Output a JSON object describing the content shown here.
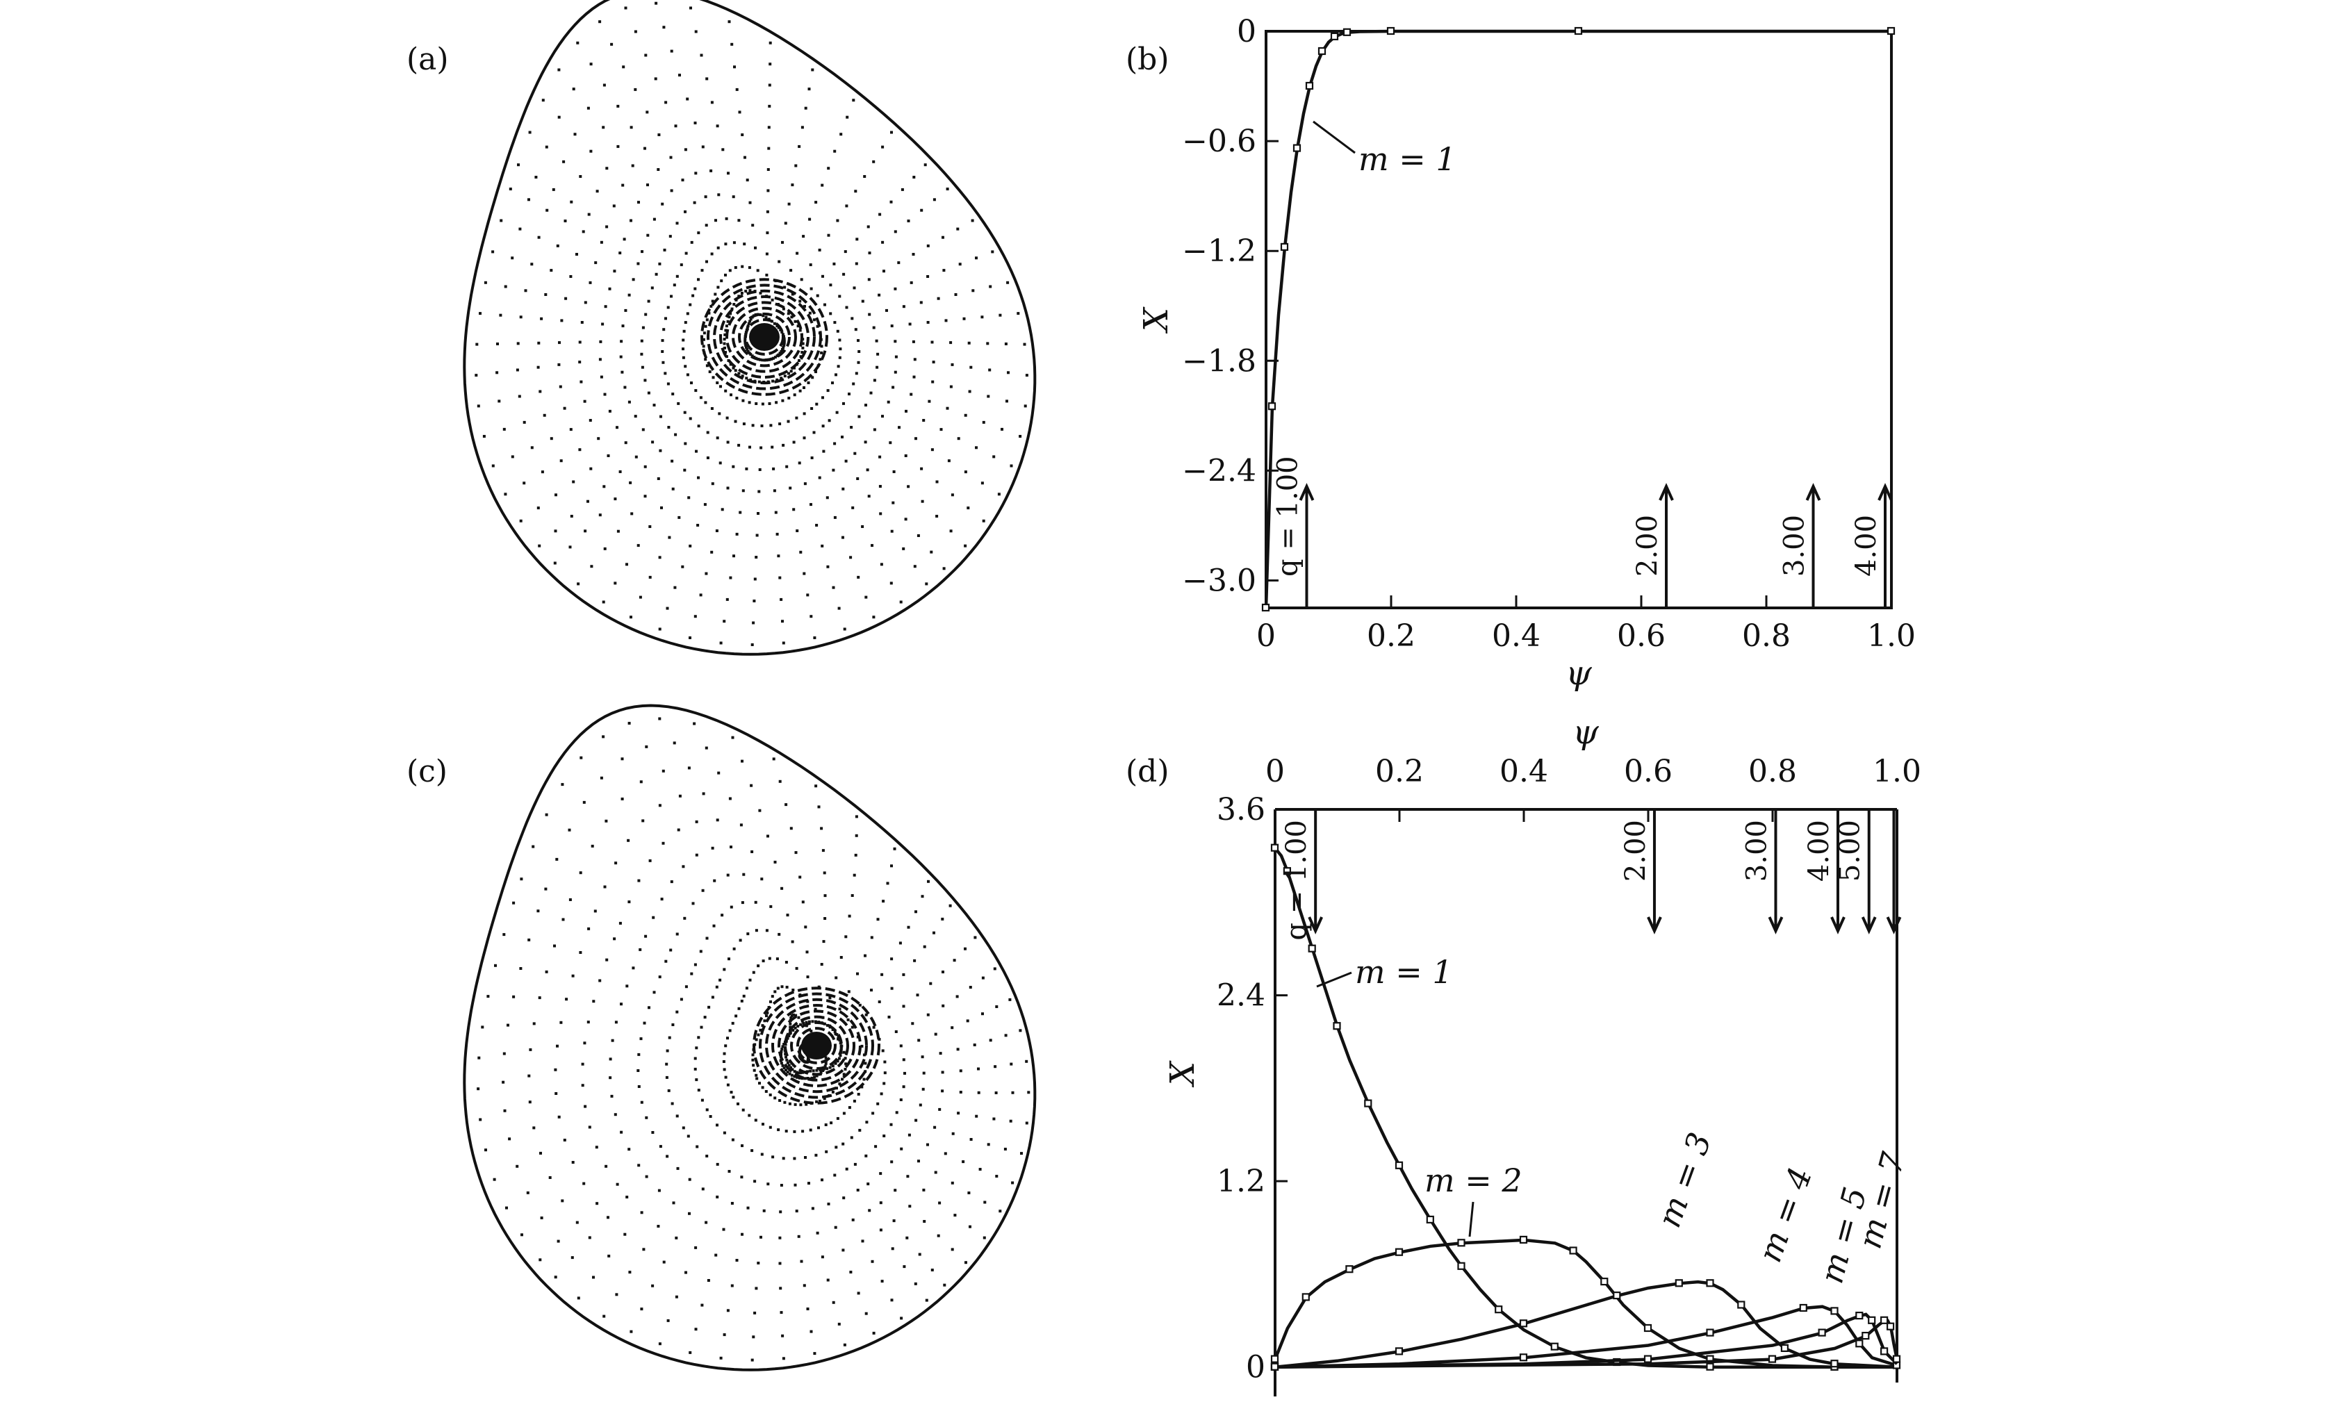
{
  "panels": {
    "a": {
      "label": "(a)"
    },
    "b": {
      "label": "(b)"
    },
    "c": {
      "label": "(c)"
    },
    "d": {
      "label": "(d)"
    }
  },
  "chart_data": [
    {
      "panel": "(b)",
      "type": "line",
      "xlabel": "ψ",
      "ylabel": "X",
      "xlim": [
        0,
        1.0
      ],
      "ylim": [
        -3.15,
        0
      ],
      "xticks": [
        0,
        0.2,
        0.4,
        0.6,
        0.8,
        1.0
      ],
      "xtick_labels": [
        "0",
        "0.2",
        "0.4",
        "0.6",
        "0.8",
        "1.0"
      ],
      "yticks": [
        0,
        -0.6,
        -1.2,
        -1.8,
        -2.4,
        -3.0
      ],
      "ytick_labels": [
        "0",
        "−0.6",
        "−1.2",
        "−1.8",
        "−2.4",
        "−3.0"
      ],
      "series": [
        {
          "name": "m = 1",
          "x": [
            0.0,
            0.005,
            0.01,
            0.02,
            0.03,
            0.04,
            0.05,
            0.06,
            0.07,
            0.08,
            0.09,
            0.1,
            0.11,
            0.12,
            0.13,
            0.15,
            0.2,
            0.3,
            0.5,
            0.7,
            1.0
          ],
          "y": [
            -3.15,
            -2.6,
            -2.05,
            -1.55,
            -1.18,
            -0.88,
            -0.64,
            -0.45,
            -0.3,
            -0.19,
            -0.11,
            -0.06,
            -0.03,
            -0.015,
            -0.007,
            -0.002,
            0,
            0,
            0,
            0,
            0
          ]
        }
      ],
      "annotations": [
        {
          "text": "q = 1.00",
          "x": 0.065
        },
        {
          "text": "2.00",
          "x": 0.64
        },
        {
          "text": "3.00",
          "x": 0.875
        },
        {
          "text": "4.00",
          "x": 0.99
        }
      ]
    },
    {
      "panel": "(d)",
      "type": "line",
      "xlabel": "ψ",
      "ylabel": "X",
      "xaxis_position": "top",
      "xlim": [
        0,
        1.0
      ],
      "ylim": [
        -0.1,
        3.6
      ],
      "xticks": [
        0,
        0.2,
        0.4,
        0.6,
        0.8,
        1.0
      ],
      "xtick_labels": [
        "0",
        "0.2",
        "0.4",
        "0.6",
        "0.8",
        "1.0"
      ],
      "yticks": [
        0,
        1.2,
        2.4,
        3.6
      ],
      "ytick_labels": [
        "0",
        "1.2",
        "2.4",
        "3.6"
      ],
      "series": [
        {
          "name": "m = 1",
          "x": [
            0.0,
            0.01,
            0.02,
            0.04,
            0.06,
            0.08,
            0.1,
            0.12,
            0.15,
            0.18,
            0.2,
            0.22,
            0.25,
            0.28,
            0.3,
            0.33,
            0.36,
            0.4,
            0.45,
            0.5,
            0.55,
            0.6,
            0.7,
            0.8,
            0.9,
            1.0
          ],
          "y": [
            3.35,
            3.3,
            3.2,
            2.95,
            2.7,
            2.45,
            2.2,
            1.98,
            1.7,
            1.45,
            1.3,
            1.15,
            0.95,
            0.76,
            0.65,
            0.5,
            0.37,
            0.24,
            0.13,
            0.06,
            0.03,
            0.01,
            0,
            0,
            0,
            0
          ]
        },
        {
          "name": "m = 2",
          "x": [
            0.0,
            0.02,
            0.05,
            0.08,
            0.12,
            0.16,
            0.2,
            0.25,
            0.3,
            0.35,
            0.4,
            0.45,
            0.48,
            0.5,
            0.53,
            0.56,
            0.6,
            0.65,
            0.7,
            0.8,
            0.9,
            1.0
          ],
          "y": [
            0.05,
            0.25,
            0.45,
            0.55,
            0.63,
            0.7,
            0.74,
            0.78,
            0.8,
            0.81,
            0.82,
            0.8,
            0.75,
            0.68,
            0.55,
            0.4,
            0.25,
            0.12,
            0.05,
            0.01,
            0,
            0
          ]
        },
        {
          "name": "m = 3",
          "x": [
            0.0,
            0.1,
            0.2,
            0.3,
            0.4,
            0.5,
            0.55,
            0.6,
            0.65,
            0.68,
            0.7,
            0.72,
            0.75,
            0.78,
            0.82,
            0.86,
            0.9,
            1.0
          ],
          "y": [
            0.0,
            0.04,
            0.1,
            0.18,
            0.28,
            0.4,
            0.46,
            0.51,
            0.54,
            0.55,
            0.54,
            0.5,
            0.4,
            0.25,
            0.12,
            0.05,
            0.02,
            0
          ]
        },
        {
          "name": "m = 4",
          "x": [
            0.0,
            0.2,
            0.4,
            0.6,
            0.7,
            0.8,
            0.85,
            0.88,
            0.9,
            0.92,
            0.94,
            0.96,
            1.0
          ],
          "y": [
            0.0,
            0.02,
            0.06,
            0.14,
            0.22,
            0.32,
            0.38,
            0.39,
            0.36,
            0.27,
            0.15,
            0.06,
            0.01
          ]
        },
        {
          "name": "m = 5",
          "x": [
            0.0,
            0.4,
            0.6,
            0.8,
            0.88,
            0.92,
            0.94,
            0.95,
            0.96,
            0.97,
            0.98,
            1.0
          ],
          "y": [
            0.0,
            0.02,
            0.05,
            0.14,
            0.22,
            0.3,
            0.33,
            0.34,
            0.3,
            0.2,
            0.1,
            0.02
          ]
        },
        {
          "name": "m = 7",
          "x": [
            0.0,
            0.6,
            0.8,
            0.9,
            0.95,
            0.97,
            0.98,
            0.985,
            0.99,
            0.995,
            1.0
          ],
          "y": [
            0.0,
            0.02,
            0.05,
            0.12,
            0.2,
            0.27,
            0.3,
            0.3,
            0.26,
            0.15,
            0.05
          ]
        }
      ],
      "annotations": [
        {
          "text": "q = 1.00",
          "x": 0.065
        },
        {
          "text": "2.00",
          "x": 0.61
        },
        {
          "text": "3.00",
          "x": 0.805
        },
        {
          "text": "4.00",
          "x": 0.905
        },
        {
          "text": "5.00",
          "x": 0.955
        },
        {
          "text": "",
          "x": 0.995
        }
      ]
    }
  ]
}
